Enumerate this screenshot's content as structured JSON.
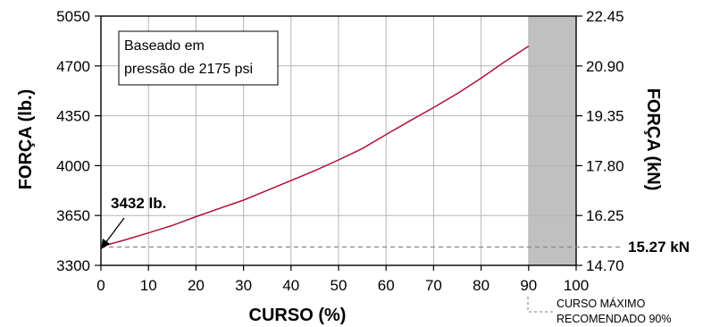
{
  "chart_data": {
    "type": "line",
    "xlabel": "CURSO (%)",
    "ylabel_left": "FORÇA (lb.)",
    "ylabel_right": "FORÇA (kN)",
    "xlim": [
      0,
      100
    ],
    "ylim_left": [
      3300,
      5050
    ],
    "ylim_right": [
      14.7,
      22.45
    ],
    "x_ticks": [
      "0",
      "10",
      "20",
      "30",
      "40",
      "50",
      "60",
      "70",
      "80",
      "90",
      "100"
    ],
    "y_ticks_left": [
      "3300",
      "3650",
      "4000",
      "4350",
      "4700",
      "5050"
    ],
    "y_ticks_right": [
      "14.70",
      "16.25",
      "17.80",
      "19.35",
      "20.90",
      "22.45"
    ],
    "grid": true,
    "series": [
      {
        "x": [
          0,
          5,
          10,
          15,
          20,
          25,
          30,
          35,
          40,
          45,
          50,
          55,
          60,
          65,
          70,
          75,
          80,
          85,
          90
        ],
        "y": [
          3432,
          3478,
          3528,
          3580,
          3642,
          3700,
          3758,
          3826,
          3895,
          3964,
          4040,
          4120,
          4218,
          4314,
          4408,
          4506,
          4614,
          4730,
          4839
        ],
        "color": "#b0103a"
      }
    ],
    "note_box": [
      "Baseado em",
      "pressão de 2175 psi"
    ],
    "start_label": "3432 lb.",
    "baseline_value_kn": 15.27,
    "baseline_label": "15.27 kN",
    "shaded_region": {
      "from": 90,
      "to": 100,
      "color": "#c0c0c0"
    },
    "recommended_note": [
      "CURSO MÁXIMO",
      "RECOMENDADO 90%"
    ]
  }
}
